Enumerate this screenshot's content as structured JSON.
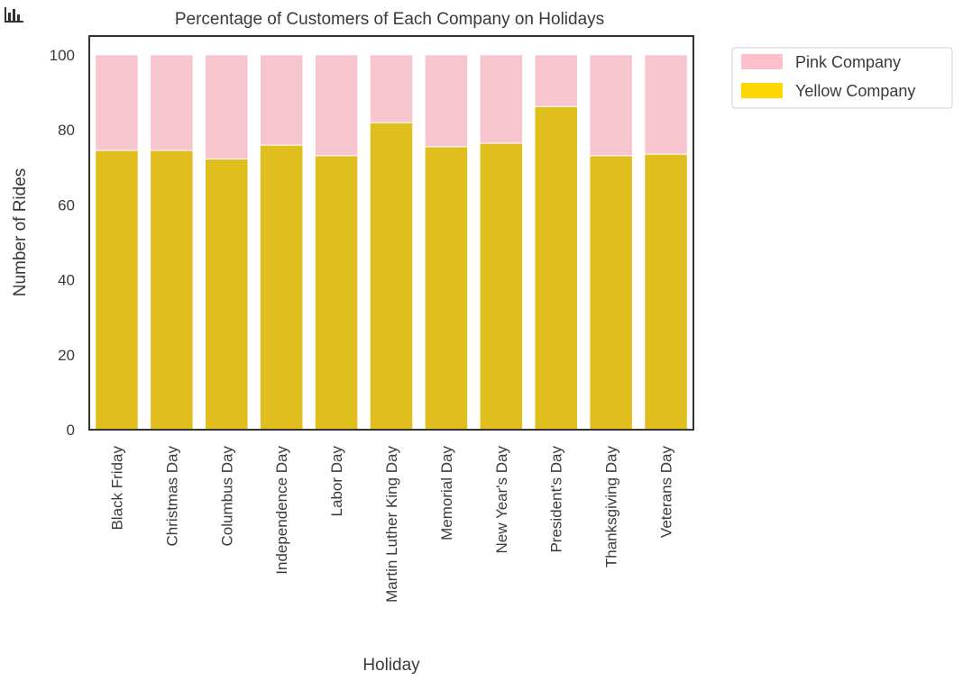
{
  "toolbar": {
    "icon": "bar-chart-icon"
  },
  "colors": {
    "pink": "#F7C5CD",
    "yellow": "#DFBE1E",
    "yellow_legend": "#FFD700",
    "pink_legend": "#FFC0CB",
    "axis": "#333333",
    "text": "#3a3a3a"
  },
  "chart_data": {
    "type": "bar",
    "stacked": true,
    "title": "Percentage of Customers of Each Company on Holidays",
    "xlabel": "Holiday",
    "ylabel": "Number of Rides",
    "ylim": [
      0,
      105
    ],
    "yticks": [
      0,
      20,
      40,
      60,
      80,
      100
    ],
    "grid": false,
    "legend_position": "outside-top-right",
    "categories": [
      "Black Friday",
      "Christmas Day",
      "Columbus Day",
      "Independence Day",
      "Labor Day",
      "Martin Luther King Day",
      "Memorial Day",
      "New Year's Day",
      "President's Day",
      "Thanksgiving Day",
      "Veterans Day"
    ],
    "series": [
      {
        "name": "Yellow Company",
        "color": "#DFBE1E",
        "values": [
          74.5,
          74.5,
          72.2,
          75.9,
          73.1,
          81.9,
          75.5,
          76.4,
          86.2,
          73.1,
          73.5
        ]
      },
      {
        "name": "Pink Company",
        "color": "#F7C5CD",
        "values": [
          25.5,
          25.5,
          27.8,
          24.1,
          26.9,
          18.1,
          24.5,
          23.6,
          13.8,
          26.9,
          26.5
        ]
      }
    ],
    "legend": [
      {
        "name": "Pink Company",
        "color": "#FFC0CB"
      },
      {
        "name": "Yellow Company",
        "color": "#FFD700"
      }
    ]
  }
}
